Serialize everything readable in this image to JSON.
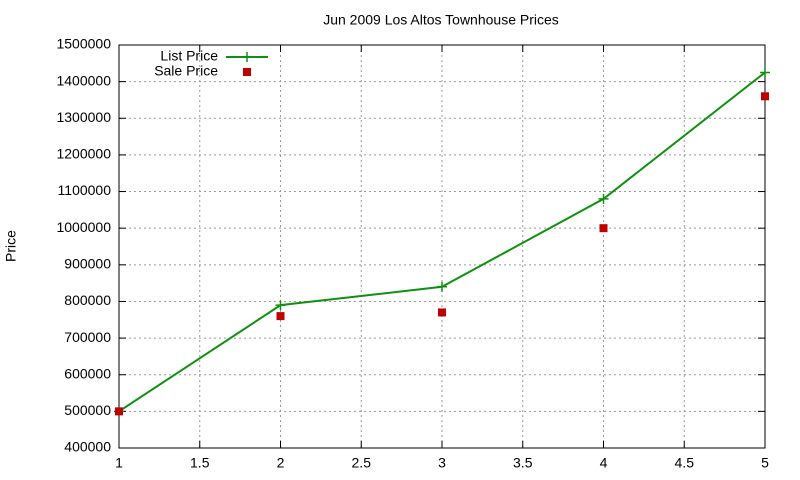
{
  "chart_data": {
    "type": "line",
    "title": "Jun 2009 Los Altos Townhouse Prices",
    "y_label": "Price",
    "x": [
      1,
      2,
      3,
      4,
      5
    ],
    "series": [
      {
        "name": "List Price",
        "color": "#109010",
        "style": "linespoints",
        "values": [
          500000,
          790000,
          840000,
          1080000,
          1425000
        ]
      },
      {
        "name": "Sale Price",
        "color": "#c00000",
        "style": "points",
        "values": [
          500000,
          760000,
          770000,
          1000000,
          1360000
        ]
      }
    ],
    "xlim": [
      1,
      5
    ],
    "xticks": [
      1,
      1.5,
      2,
      2.5,
      3,
      3.5,
      4,
      4.5,
      5
    ],
    "ylim": [
      400000,
      1500000
    ],
    "yticks": [
      400000,
      500000,
      600000,
      700000,
      800000,
      900000,
      1000000,
      1100000,
      1200000,
      1300000,
      1400000,
      1500000
    ],
    "grid": true,
    "legend": "top-left"
  }
}
